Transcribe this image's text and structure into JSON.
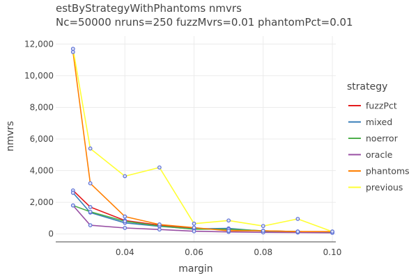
{
  "chart_data": {
    "type": "line",
    "title": "estByStrategyWithPhantoms nmvrs",
    "subtitle": "Nc=50000 nruns=250 fuzzMvrs=0.01 phantomPct=0.01",
    "xlabel": "margin",
    "ylabel": "nmvrs",
    "xlim": [
      0.02,
      0.101
    ],
    "ylim": [
      -500,
      12500
    ],
    "x_ticks": [
      0.04,
      0.06,
      0.08,
      0.1
    ],
    "x_tick_labels": [
      "0.04",
      "0.06",
      "0.08",
      "0.10"
    ],
    "y_ticks": [
      0,
      2000,
      4000,
      6000,
      8000,
      10000,
      12000
    ],
    "y_tick_labels": [
      "0",
      "2,000",
      "4,000",
      "6,000",
      "8,000",
      "10,000",
      "12,000"
    ],
    "grid": true,
    "legend_title": "strategy",
    "legend_position": "right",
    "marker_color": "#5b6fd6",
    "x": [
      0.025,
      0.03,
      0.04,
      0.05,
      0.06,
      0.07,
      0.08,
      0.09,
      0.1
    ],
    "series": [
      {
        "name": "fuzzPct",
        "color": "#e41a1c",
        "values": [
          2750,
          1700,
          850,
          550,
          350,
          280,
          200,
          150,
          110
        ]
      },
      {
        "name": "mixed",
        "color": "#377eb8",
        "values": [
          2600,
          1350,
          700,
          480,
          320,
          350,
          170,
          130,
          100
        ]
      },
      {
        "name": "noerror",
        "color": "#4daf4a",
        "values": [
          1800,
          1400,
          800,
          500,
          300,
          300,
          200,
          150,
          110
        ]
      },
      {
        "name": "oracle",
        "color": "#984ea3",
        "values": [
          1800,
          550,
          380,
          280,
          170,
          130,
          100,
          90,
          70
        ]
      },
      {
        "name": "phantoms",
        "color": "#ff7f00",
        "values": [
          11500,
          3200,
          1100,
          600,
          400,
          200,
          200,
          150,
          150
        ]
      },
      {
        "name": "previous",
        "color": "#ffff33",
        "values": [
          11700,
          5400,
          3650,
          4200,
          650,
          850,
          500,
          950,
          150
        ]
      }
    ]
  }
}
